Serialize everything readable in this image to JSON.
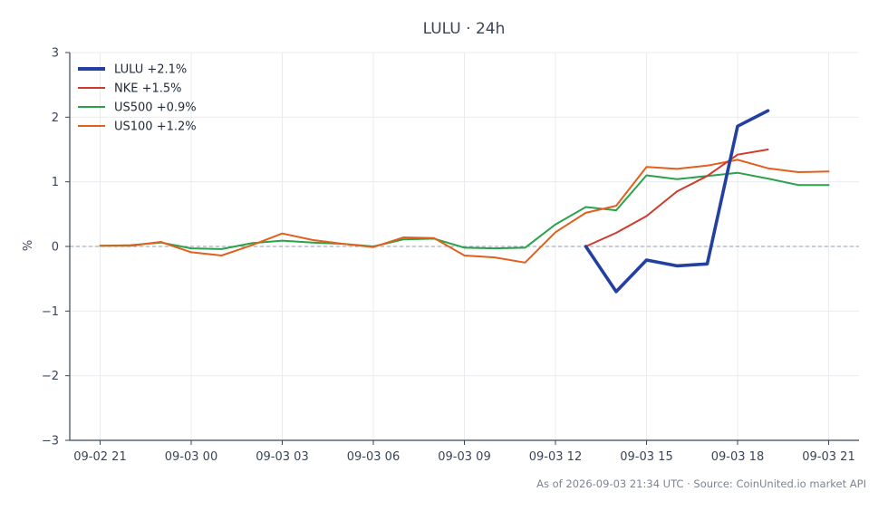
{
  "chart_data": {
    "type": "line",
    "title": "LULU · 24h",
    "ylabel": "%",
    "xlabel": "",
    "ylim": [
      -3,
      3
    ],
    "xlim": [
      "09-02 20",
      "09-03 22"
    ],
    "grid": true,
    "legend_position": "top-left",
    "zero_line": {
      "value": 0,
      "style": "dashed"
    },
    "x_ticks": [
      "09-02 21",
      "09-03 00",
      "09-03 03",
      "09-03 06",
      "09-03 09",
      "09-03 12",
      "09-03 15",
      "09-03 18",
      "09-03 21"
    ],
    "y_ticks": [
      "3",
      "2",
      "1",
      "0",
      "−1",
      "−2",
      "−3"
    ],
    "y_tick_values": [
      3,
      2,
      1,
      0,
      -1,
      -2,
      -3
    ],
    "series": [
      {
        "name": "LULU +2.1%",
        "color": "#2340a0",
        "line_width": "bold",
        "x": [
          "09-03 13",
          "09-03 14",
          "09-03 15",
          "09-03 16",
          "09-03 17",
          "09-03 18",
          "09-03 19"
        ],
        "values": [
          0.0,
          -0.7,
          -0.21,
          -0.3,
          -0.27,
          1.86,
          2.1
        ]
      },
      {
        "name": "NKE +1.5%",
        "color": "#d03a2c",
        "x": [
          "09-03 13",
          "09-03 14",
          "09-03 15",
          "09-03 16",
          "09-03 17",
          "09-03 18",
          "09-03 19"
        ],
        "values": [
          0.0,
          0.21,
          0.47,
          0.85,
          1.09,
          1.42,
          1.5
        ]
      },
      {
        "name": "US500 +0.9%",
        "color": "#2aa14a",
        "x": [
          "09-02 21",
          "09-02 22",
          "09-02 23",
          "09-03 00",
          "09-03 01",
          "09-03 02",
          "09-03 03",
          "09-03 04",
          "09-03 05",
          "09-03 06",
          "09-03 07",
          "09-03 08",
          "09-03 09",
          "09-03 10",
          "09-03 11",
          "09-03 12",
          "09-03 13",
          "09-03 14",
          "09-03 15",
          "09-03 16",
          "09-03 17",
          "09-03 18",
          "09-03 19",
          "09-03 20",
          "09-03 21"
        ],
        "values": [
          0.01,
          0.02,
          0.06,
          -0.03,
          -0.04,
          0.05,
          0.09,
          0.06,
          0.04,
          0.0,
          0.11,
          0.12,
          -0.02,
          -0.03,
          -0.02,
          0.34,
          0.61,
          0.56,
          1.1,
          1.04,
          1.09,
          1.14,
          1.05,
          0.95,
          0.95
        ]
      },
      {
        "name": "US100 +1.2%",
        "color": "#e25f1c",
        "x": [
          "09-02 21",
          "09-02 22",
          "09-02 23",
          "09-03 00",
          "09-03 01",
          "09-03 02",
          "09-03 03",
          "09-03 04",
          "09-03 05",
          "09-03 06",
          "09-03 07",
          "09-03 08",
          "09-03 09",
          "09-03 10",
          "09-03 11",
          "09-03 12",
          "09-03 13",
          "09-03 14",
          "09-03 15",
          "09-03 16",
          "09-03 17",
          "09-03 18",
          "09-03 19",
          "09-03 20",
          "09-03 21"
        ],
        "values": [
          0.01,
          0.01,
          0.07,
          -0.09,
          -0.14,
          0.02,
          0.2,
          0.1,
          0.04,
          -0.01,
          0.14,
          0.13,
          -0.14,
          -0.17,
          -0.25,
          0.22,
          0.52,
          0.63,
          1.23,
          1.2,
          1.25,
          1.34,
          1.21,
          1.15,
          1.16
        ]
      }
    ]
  },
  "footer": "As of 2026-09-03 21:34 UTC · Source: CoinUnited.io market API"
}
